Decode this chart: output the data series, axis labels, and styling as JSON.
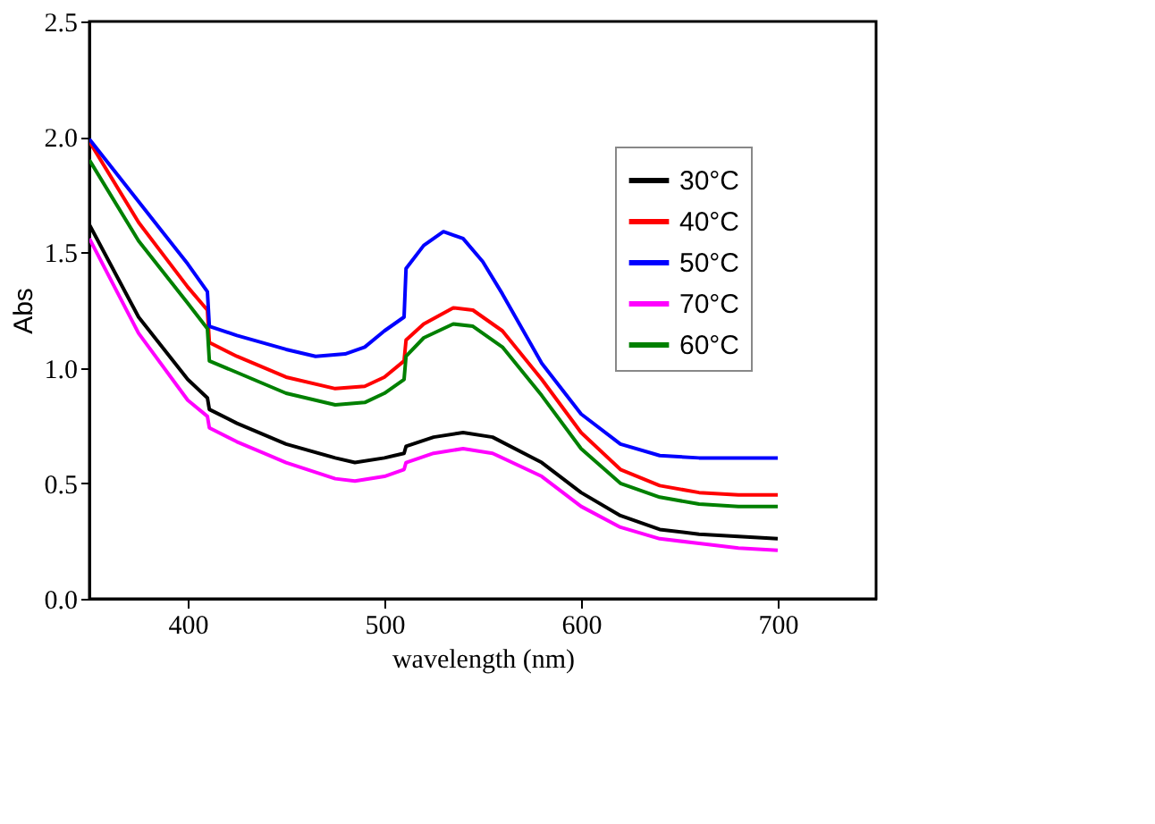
{
  "chart_data": {
    "type": "line",
    "xlabel": "wavelength (nm)",
    "ylabel": "Abs",
    "xlim": [
      350,
      750
    ],
    "xticks": [
      400,
      500,
      600,
      700
    ],
    "ylim": [
      0,
      2.5
    ],
    "yticks": [
      {
        "value": 0,
        "label": "0.0"
      },
      0.5,
      {
        "value": 1,
        "label": "1.0"
      },
      1.5,
      {
        "value": 2,
        "label": "2.0"
      },
      2.5
    ],
    "grid": false,
    "legend": "top right",
    "marker": "none",
    "line_style": "solid",
    "series": [
      {
        "name": "30°C",
        "color": "#000000",
        "x": [
          350,
          375,
          400,
          410,
          411,
          425,
          450,
          475,
          485,
          500,
          510,
          511,
          525,
          540,
          555,
          580,
          600,
          620,
          640,
          660,
          680,
          700
        ],
        "values": [
          1.62,
          1.22,
          0.95,
          0.87,
          0.82,
          0.76,
          0.67,
          0.61,
          0.59,
          0.61,
          0.63,
          0.66,
          0.7,
          0.72,
          0.7,
          0.59,
          0.46,
          0.36,
          0.3,
          0.28,
          0.27,
          0.26
        ]
      },
      {
        "name": "40°C",
        "color": "#ff0000",
        "x": [
          350,
          375,
          400,
          410,
          411,
          425,
          450,
          475,
          490,
          500,
          510,
          511,
          520,
          535,
          545,
          560,
          580,
          600,
          620,
          640,
          660,
          680,
          700
        ],
        "values": [
          1.98,
          1.63,
          1.35,
          1.25,
          1.11,
          1.05,
          0.96,
          0.91,
          0.92,
          0.96,
          1.03,
          1.12,
          1.19,
          1.26,
          1.25,
          1.16,
          0.95,
          0.72,
          0.56,
          0.49,
          0.46,
          0.45,
          0.45
        ]
      },
      {
        "name": "50°C",
        "color": "#0000ff",
        "x": [
          350,
          375,
          400,
          410,
          411,
          425,
          450,
          465,
          480,
          490,
          500,
          510,
          511,
          520,
          530,
          540,
          550,
          560,
          580,
          600,
          620,
          640,
          660,
          680,
          700
        ],
        "values": [
          1.99,
          1.72,
          1.45,
          1.33,
          1.18,
          1.14,
          1.08,
          1.05,
          1.06,
          1.09,
          1.16,
          1.22,
          1.43,
          1.53,
          1.59,
          1.56,
          1.46,
          1.32,
          1.02,
          0.8,
          0.67,
          0.62,
          0.61,
          0.61,
          0.61
        ]
      },
      {
        "name": "70°C",
        "color": "#ff00ff",
        "x": [
          350,
          375,
          400,
          410,
          411,
          425,
          450,
          475,
          485,
          500,
          510,
          511,
          525,
          540,
          555,
          580,
          600,
          620,
          640,
          660,
          680,
          700
        ],
        "values": [
          1.56,
          1.15,
          0.86,
          0.79,
          0.74,
          0.68,
          0.59,
          0.52,
          0.51,
          0.53,
          0.56,
          0.59,
          0.63,
          0.65,
          0.63,
          0.53,
          0.4,
          0.31,
          0.26,
          0.24,
          0.22,
          0.21
        ]
      },
      {
        "name": "60°C",
        "color": "#008000",
        "x": [
          350,
          375,
          400,
          410,
          411,
          425,
          450,
          475,
          490,
          500,
          510,
          511,
          520,
          535,
          545,
          560,
          580,
          600,
          620,
          640,
          660,
          680,
          700
        ],
        "values": [
          1.9,
          1.55,
          1.28,
          1.17,
          1.03,
          0.98,
          0.89,
          0.84,
          0.85,
          0.89,
          0.95,
          1.05,
          1.13,
          1.19,
          1.18,
          1.09,
          0.88,
          0.65,
          0.5,
          0.44,
          0.41,
          0.4,
          0.4
        ]
      }
    ]
  }
}
